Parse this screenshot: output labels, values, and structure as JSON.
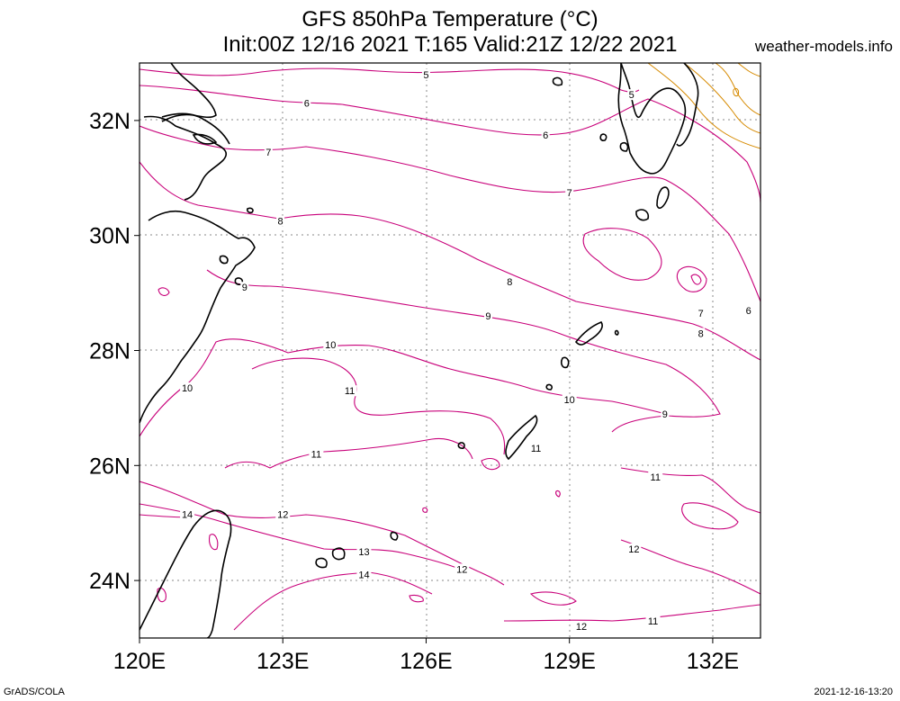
{
  "header": {
    "title_line1": "GFS 850hPa Temperature (°C)",
    "title_line2": "Init:00Z 12/16 2021 T:165 Valid:21Z 12/22 2021",
    "watermark": "weather-models.info"
  },
  "footer": {
    "left": "GrADS/COLA",
    "right": "2021-12-16-13:20"
  },
  "map": {
    "lon_range": [
      120,
      133
    ],
    "lat_range": [
      23,
      33
    ],
    "lon_ticks": [
      {
        "value": 120,
        "label": "120E"
      },
      {
        "value": 123,
        "label": "123E"
      },
      {
        "value": 126,
        "label": "126E"
      },
      {
        "value": 129,
        "label": "129E"
      },
      {
        "value": 132,
        "label": "132E"
      }
    ],
    "lat_ticks": [
      {
        "value": 24,
        "label": "24N"
      },
      {
        "value": 26,
        "label": "26N"
      },
      {
        "value": 28,
        "label": "28N"
      },
      {
        "value": 30,
        "label": "30N"
      },
      {
        "value": 32,
        "label": "32N"
      }
    ],
    "colors": {
      "contour": "#c8007a",
      "contour_warm": "#d68a00",
      "coast": "#000000",
      "grid": "#888888"
    },
    "contour_labels": [
      {
        "text": "5",
        "lon": 126.0,
        "lat": 32.8
      },
      {
        "text": "5",
        "lon": 130.3,
        "lat": 32.45
      },
      {
        "text": "6",
        "lon": 123.5,
        "lat": 32.3
      },
      {
        "text": "6",
        "lon": 128.5,
        "lat": 31.75
      },
      {
        "text": "6",
        "lon": 132.75,
        "lat": 28.7
      },
      {
        "text": "7",
        "lon": 122.7,
        "lat": 31.45
      },
      {
        "text": "7",
        "lon": 129.0,
        "lat": 30.75
      },
      {
        "text": "7",
        "lon": 131.75,
        "lat": 28.65
      },
      {
        "text": "8",
        "lon": 122.95,
        "lat": 30.25
      },
      {
        "text": "8",
        "lon": 127.75,
        "lat": 29.2
      },
      {
        "text": "8",
        "lon": 131.75,
        "lat": 28.3
      },
      {
        "text": "9",
        "lon": 122.2,
        "lat": 29.1
      },
      {
        "text": "9",
        "lon": 127.3,
        "lat": 28.6
      },
      {
        "text": "9",
        "lon": 131.0,
        "lat": 26.9
      },
      {
        "text": "10",
        "lon": 124.0,
        "lat": 28.1
      },
      {
        "text": "10",
        "lon": 121.0,
        "lat": 27.35
      },
      {
        "text": "10",
        "lon": 129.0,
        "lat": 27.15
      },
      {
        "text": "11",
        "lon": 124.4,
        "lat": 27.3
      },
      {
        "text": "11",
        "lon": 123.7,
        "lat": 26.2
      },
      {
        "text": "11",
        "lon": 128.3,
        "lat": 26.3
      },
      {
        "text": "11",
        "lon": 130.8,
        "lat": 25.8
      },
      {
        "text": "11",
        "lon": 130.75,
        "lat": 23.3
      },
      {
        "text": "12",
        "lon": 123.0,
        "lat": 25.15
      },
      {
        "text": "12",
        "lon": 126.75,
        "lat": 24.2
      },
      {
        "text": "12",
        "lon": 130.35,
        "lat": 24.55
      },
      {
        "text": "12",
        "lon": 129.25,
        "lat": 23.2
      },
      {
        "text": "13",
        "lon": 124.7,
        "lat": 24.5
      },
      {
        "text": "14",
        "lon": 121.0,
        "lat": 25.15
      },
      {
        "text": "14",
        "lon": 124.7,
        "lat": 24.1
      }
    ]
  }
}
